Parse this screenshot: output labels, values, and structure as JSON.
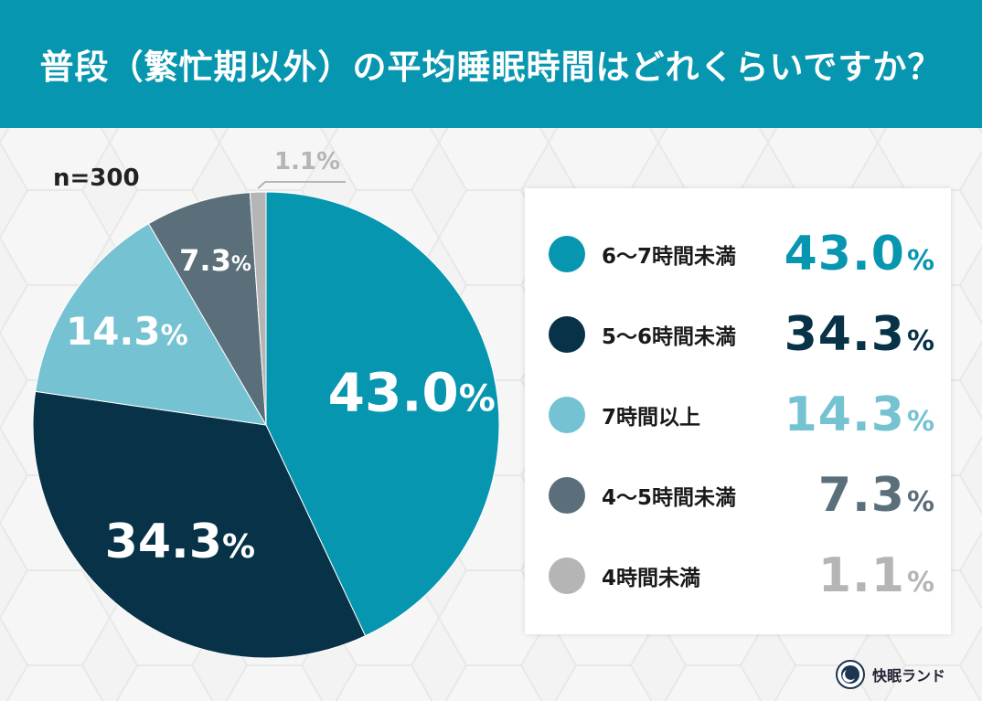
{
  "header": {
    "title": "普段（繁忙期以外）の平均睡眠時間はどれくらいですか？"
  },
  "sample": "n=300",
  "colors": {
    "header_bg": "#0796b0",
    "s1": "#0796b0",
    "s2": "#073248",
    "s3": "#74c2d2",
    "s4": "#5b6f7b",
    "s5": "#b5b5b5"
  },
  "chart_data": {
    "type": "pie",
    "categories": [
      "6〜7時間未満",
      "5〜6時間未満",
      "7時間以上",
      "4〜5時間未満",
      "4時間未満"
    ],
    "values": [
      43.0,
      34.3,
      14.3,
      7.3,
      1.1
    ],
    "labels": [
      "43.0%",
      "34.3%",
      "14.3%",
      "7.3%",
      "1.1%"
    ],
    "colors": [
      "#0796b0",
      "#073248",
      "#74c2d2",
      "#5b6f7b",
      "#b5b5b5"
    ]
  },
  "legend": [
    {
      "label": "6〜7時間未満",
      "value": "43.0",
      "unit": "%"
    },
    {
      "label": "5〜6時間未満",
      "value": "34.3",
      "unit": "%"
    },
    {
      "label": "7時間以上",
      "value": "14.3",
      "unit": "%"
    },
    {
      "label": "4〜5時間未満",
      "value": "7.3",
      "unit": "%"
    },
    {
      "label": "4時間未満",
      "value": "1.1",
      "unit": "%"
    }
  ],
  "logo": {
    "name": "快眠ランド"
  }
}
